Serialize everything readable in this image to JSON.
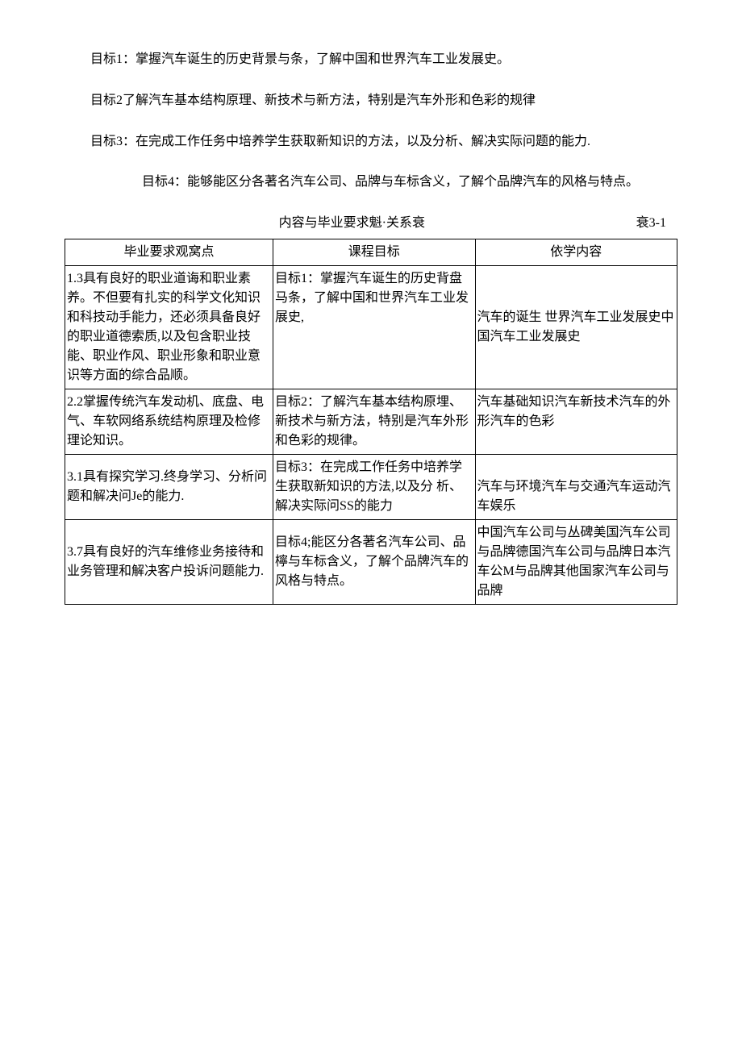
{
  "goals": {
    "g1": "目标1：掌握汽车诞生的历史背景与条，了解中国和世界汽车工业发展史。",
    "g2": "目标2了解汽车基本结构原理、新技术与新方法，特别是汽车外形和色彩的规律",
    "g3": "目标3：在完成工作任务中培养学生获取新知识的方法，以及分析、解决实际问题的能力.",
    "g4": "目标4：能够能区分各著名汽车公司、品牌与车标含义，了解个品牌汽车的风格与特点。"
  },
  "table": {
    "title": "内容与毕业要求魁·关系衰",
    "number": "衰3-1",
    "headers": {
      "h1": "毕业要求观窝点",
      "h2": "课程目标",
      "h3": "依学内容"
    },
    "rows": [
      {
        "c1": "1.3具有良好的职业道诲和职业素养。不但要有扎实的科学文化知识和科技动手能力，还必须具备良好的职业道德索质,以及包含职业技能、职业作风、职业形象和职业意识等方面的综合品顺。",
        "c2": "目标1：掌握汽车诞生的历史背盘马条，了解中国和世界汽车工业发展史,",
        "c3": "汽车的诞生\n世界汽车工业发展史中国汽车工业发展史"
      },
      {
        "c1": "2.2掌握传统汽车发动机、底盘、电气、车软网络系统结构原理及检修理论知识。",
        "c2": "目标2：了解汽车基本结构原埋、新技术与新方法，特别是汽车外形和色彩的规律。",
        "c3": "汽车基础知识汽车新技术汽车的外形汽车的色彩"
      },
      {
        "c1": "3.1具有探究学习.终身学习、分析问题和解决问Je的能力.",
        "c2": "目标3：在完成工作任务中培养学生获取新知识的方法,以及分\n析、解决实际问SS的能力",
        "c3": "汽车与环境汽车与交通汽车运动汽车娱乐"
      },
      {
        "c1": "3.7具有良好的汽车维修业务接待和业务管理和解决客户投诉问题能力.",
        "c2": "目标4;能区分各著名汽车公司、品檸与车标含义，了解个品牌汽车的风格与特点。",
        "c3": "中国汽车公司与丛碑美国汽车公司与品牌德国汽车公司与品牌日本汽车公M与品牌其他国家汽车公司与品牌"
      }
    ]
  }
}
